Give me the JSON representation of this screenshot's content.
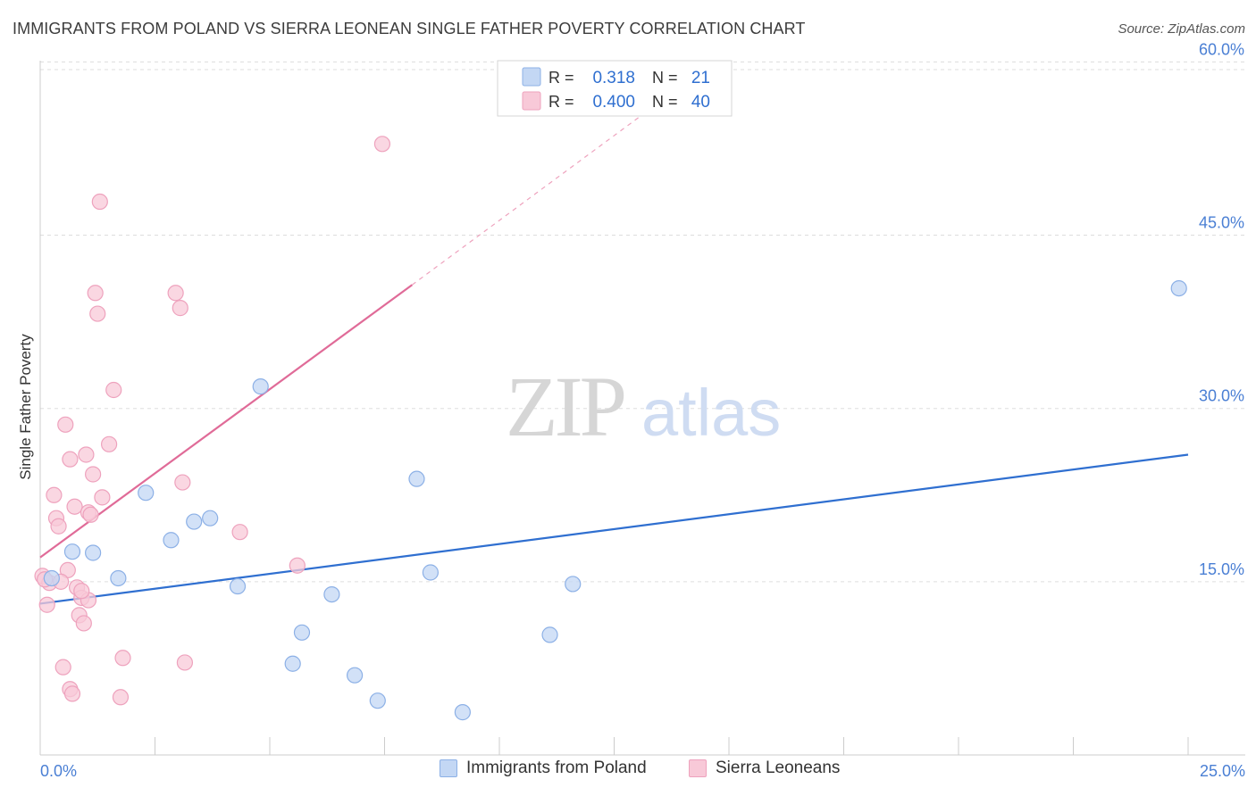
{
  "title": "IMMIGRANTS FROM POLAND VS SIERRA LEONEAN SINGLE FATHER POVERTY CORRELATION CHART",
  "source": "Source: ZipAtlas.com",
  "watermark": {
    "zip": "ZIP",
    "atlas": "atlas"
  },
  "colors": {
    "blue": "#2f6fd0",
    "blue_fill": "#c3d7f4",
    "blue_stroke": "#8cb0e6",
    "pink": "#e06b98",
    "pink_fill": "#f8c9d8",
    "pink_stroke": "#eea2bd",
    "axis_text": "#4a7fd4",
    "grid": "#dddddd"
  },
  "legend": {
    "rows": [
      {
        "r_label": "R =",
        "r_value": "0.318",
        "n_label": "N =",
        "n_value": "21"
      },
      {
        "r_label": "R =",
        "r_value": "0.400",
        "n_label": "N =",
        "n_value": "40"
      }
    ],
    "bottom": [
      "Immigrants from Poland",
      "Sierra Leoneans"
    ]
  },
  "chart_data": {
    "type": "scatter",
    "title": "IMMIGRANTS FROM POLAND VS SIERRA LEONEAN SINGLE FATHER POVERTY CORRELATION CHART",
    "xlabel": "",
    "ylabel": "Single Father Poverty",
    "xlim": [
      0,
      25
    ],
    "ylim": [
      0,
      61.5
    ],
    "x_tick_labels": [
      "0.0%",
      "25.0%"
    ],
    "y_ticks": [
      15,
      30,
      45,
      60
    ],
    "y_tick_labels": [
      "15.0%",
      "30.0%",
      "45.0%",
      "60.0%"
    ],
    "grid": true,
    "legend_position": "top-center",
    "series": [
      {
        "name": "Immigrants from Poland",
        "color": "#2f6fd0",
        "R": 0.318,
        "N": 21,
        "trend": {
          "x": [
            0,
            25
          ],
          "y": [
            13.1,
            26.0
          ],
          "dashed_to": null
        },
        "points": [
          [
            0.25,
            15.3
          ],
          [
            0.7,
            17.6
          ],
          [
            1.15,
            17.5
          ],
          [
            1.7,
            15.3
          ],
          [
            2.3,
            22.7
          ],
          [
            2.85,
            18.6
          ],
          [
            3.35,
            20.2
          ],
          [
            3.7,
            20.5
          ],
          [
            4.3,
            14.6
          ],
          [
            4.8,
            31.9
          ],
          [
            5.7,
            10.6
          ],
          [
            5.5,
            7.9
          ],
          [
            6.35,
            13.9
          ],
          [
            6.85,
            6.9
          ],
          [
            7.35,
            4.7
          ],
          [
            8.2,
            23.9
          ],
          [
            8.5,
            15.8
          ],
          [
            9.2,
            3.7
          ],
          [
            11.1,
            10.4
          ],
          [
            11.6,
            14.8
          ],
          [
            24.8,
            40.4
          ]
        ]
      },
      {
        "name": "Sierra Leoneans",
        "color": "#e06b98",
        "R": 0.4,
        "N": 40,
        "trend": {
          "x": [
            0,
            8.1
          ],
          "y": [
            17.1,
            40.7
          ],
          "dashed_to": [
            14.5,
            59.5
          ]
        },
        "points": [
          [
            0.05,
            15.5
          ],
          [
            0.15,
            13.0
          ],
          [
            0.2,
            14.9
          ],
          [
            0.3,
            22.5
          ],
          [
            0.35,
            20.5
          ],
          [
            0.4,
            19.8
          ],
          [
            0.5,
            7.6
          ],
          [
            0.55,
            28.6
          ],
          [
            0.6,
            16.0
          ],
          [
            0.65,
            25.6
          ],
          [
            0.65,
            5.7
          ],
          [
            0.7,
            5.3
          ],
          [
            0.75,
            21.5
          ],
          [
            0.8,
            14.5
          ],
          [
            0.85,
            12.1
          ],
          [
            0.9,
            13.6
          ],
          [
            0.95,
            11.4
          ],
          [
            1.0,
            26.0
          ],
          [
            1.05,
            13.4
          ],
          [
            1.05,
            21.0
          ],
          [
            1.1,
            20.8
          ],
          [
            1.15,
            24.3
          ],
          [
            1.2,
            40.0
          ],
          [
            1.25,
            38.2
          ],
          [
            1.3,
            47.9
          ],
          [
            1.35,
            22.3
          ],
          [
            1.5,
            26.9
          ],
          [
            1.6,
            31.6
          ],
          [
            1.75,
            5.0
          ],
          [
            1.8,
            8.4
          ],
          [
            2.95,
            40.0
          ],
          [
            3.05,
            38.7
          ],
          [
            3.1,
            23.6
          ],
          [
            3.15,
            8.0
          ],
          [
            4.35,
            19.3
          ],
          [
            5.6,
            16.4
          ],
          [
            7.45,
            52.9
          ],
          [
            0.1,
            15.2
          ],
          [
            0.45,
            15.0
          ],
          [
            0.9,
            14.2
          ]
        ]
      }
    ]
  }
}
